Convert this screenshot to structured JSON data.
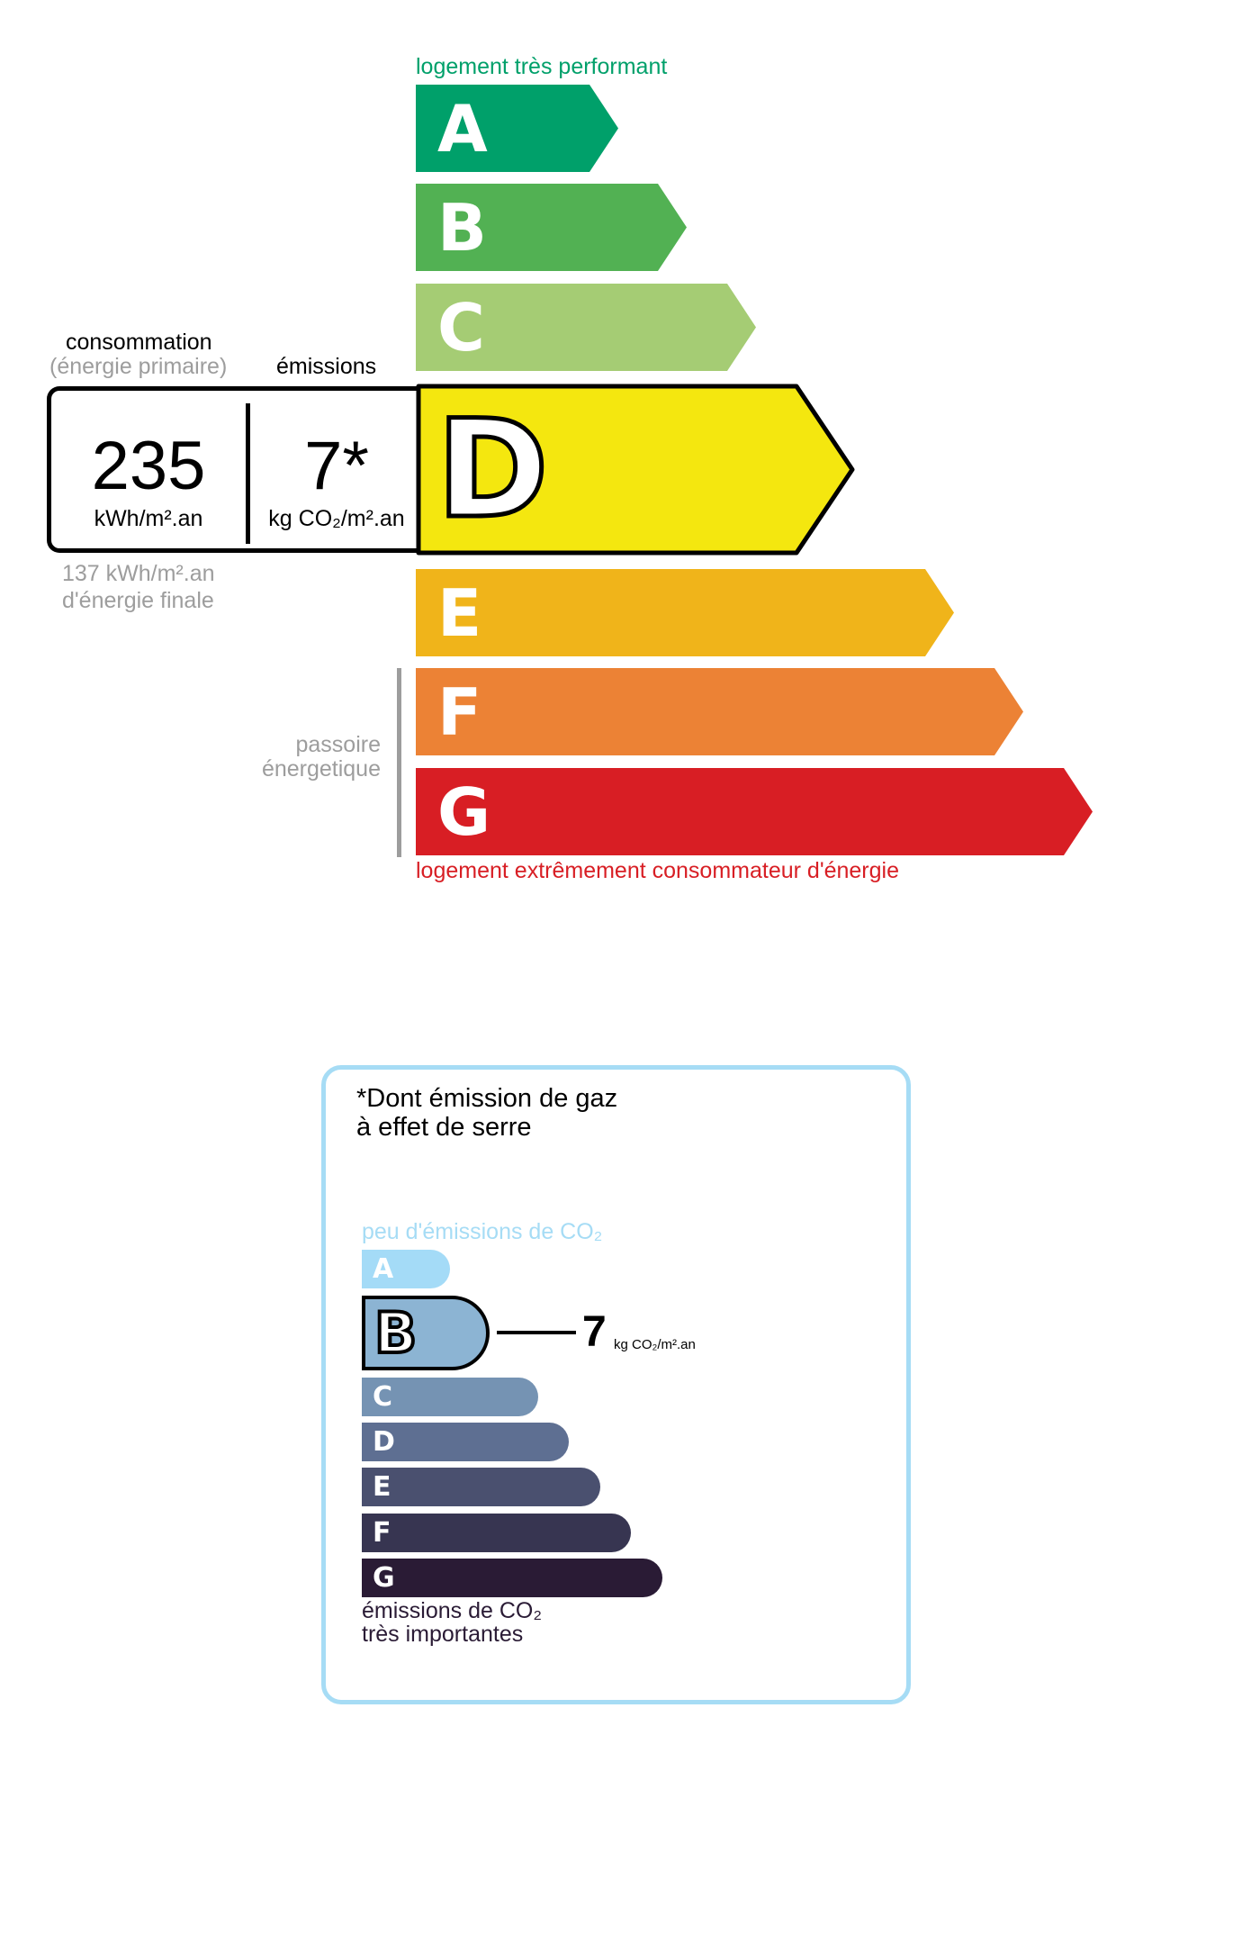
{
  "energy_label": {
    "top_caption": "logement très performant",
    "bottom_caption": "logement extrêmement consommateur d'énergie",
    "classes": [
      {
        "letter": "A",
        "color": "#00a06a"
      },
      {
        "letter": "B",
        "color": "#52b153"
      },
      {
        "letter": "C",
        "color": "#a5cc74"
      },
      {
        "letter": "D",
        "color": "#f4e70f"
      },
      {
        "letter": "E",
        "color": "#f0b41a"
      },
      {
        "letter": "F",
        "color": "#ec8235"
      },
      {
        "letter": "G",
        "color": "#d81e24"
      }
    ],
    "current_class": "D",
    "consumption_heading": "consommation",
    "consumption_subheading": "(énergie primaire)",
    "emissions_heading": "émissions",
    "consumption_value": "235",
    "consumption_unit": "kWh/m².an",
    "emissions_value": "7*",
    "emissions_unit": "kg CO₂/m².an",
    "final_energy_value": "137 kWh/m².an",
    "final_energy_label": "d'énergie finale",
    "passoire_line1": "passoire",
    "passoire_line2": "énergetique"
  },
  "ges_label": {
    "title_line1": "*Dont émission de gaz",
    "title_line2": "à effet de serre",
    "top_caption": "peu d'émissions de CO₂",
    "bottom_caption_line1": "émissions de CO₂",
    "bottom_caption_line2": "très importantes",
    "classes": [
      {
        "letter": "A",
        "color": "#a4dbf7"
      },
      {
        "letter": "B",
        "color": "#8cb4d3"
      },
      {
        "letter": "C",
        "color": "#7593b3"
      },
      {
        "letter": "D",
        "color": "#5e6f92"
      },
      {
        "letter": "E",
        "color": "#4a506f"
      },
      {
        "letter": "F",
        "color": "#373551"
      },
      {
        "letter": "G",
        "color": "#2a1b35"
      }
    ],
    "current_class": "B",
    "value": "7",
    "unit": "kg CO₂/m².an",
    "border_color": "#a6dcf5"
  }
}
